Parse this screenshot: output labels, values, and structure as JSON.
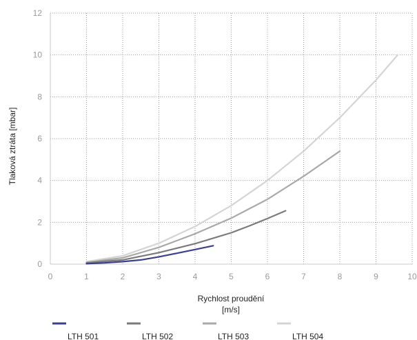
{
  "chart_data": {
    "type": "line",
    "xlabel_line1": "Rychlost proudění",
    "xlabel_line2": "[m/s]",
    "ylabel": "Tlaková ztráta [mbar]",
    "xlim": [
      0,
      10
    ],
    "ylim": [
      0,
      12
    ],
    "xticks": [
      "0",
      "1",
      "2",
      "3",
      "4",
      "5",
      "6",
      "7",
      "8",
      "9",
      "10"
    ],
    "yticks": [
      "0",
      "2",
      "4",
      "6",
      "8",
      "10",
      "12"
    ],
    "grid": "dotted, both axes",
    "legend_position": "bottom",
    "series": [
      {
        "name": "LTH 501",
        "color": "#3a3f8f",
        "x": [
          1.0,
          1.5,
          2.0,
          2.5,
          3.0,
          3.5,
          4.0,
          4.5
        ],
        "y": [
          0.02,
          0.06,
          0.12,
          0.2,
          0.35,
          0.52,
          0.7,
          0.88
        ]
      },
      {
        "name": "LTH 502",
        "color": "#7a7a7a",
        "x": [
          1.0,
          2.0,
          3.0,
          4.0,
          5.0,
          5.5,
          6.0,
          6.5
        ],
        "y": [
          0.06,
          0.2,
          0.55,
          0.98,
          1.5,
          1.83,
          2.18,
          2.55
        ]
      },
      {
        "name": "LTH 503",
        "color": "#a8a8a8",
        "x": [
          1.0,
          2.0,
          3.0,
          4.0,
          5.0,
          6.0,
          7.0,
          8.0
        ],
        "y": [
          0.08,
          0.3,
          0.8,
          1.45,
          2.2,
          3.1,
          4.2,
          5.4
        ]
      },
      {
        "name": "LTH 504",
        "color": "#d4d4d4",
        "x": [
          1.0,
          2.0,
          3.0,
          4.0,
          5.0,
          6.0,
          7.0,
          8.0,
          9.0,
          9.6
        ],
        "y": [
          0.12,
          0.4,
          1.0,
          1.8,
          2.8,
          4.0,
          5.4,
          7.0,
          8.8,
          10.0
        ]
      }
    ]
  }
}
